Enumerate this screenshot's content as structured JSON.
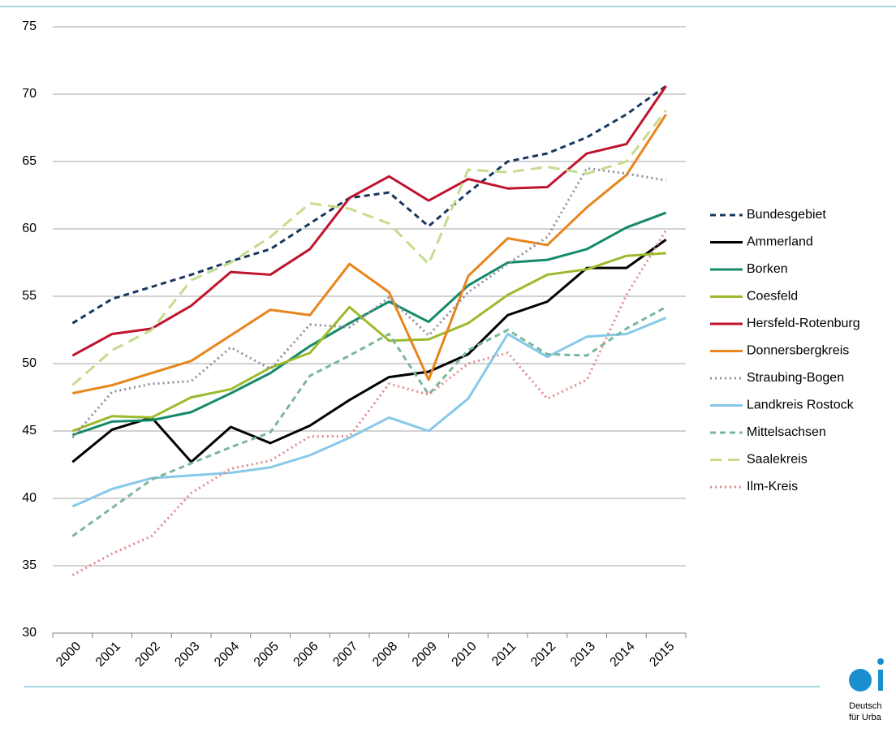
{
  "chart_data": {
    "type": "line",
    "categories": [
      "2000",
      "2001",
      "2002",
      "2003",
      "2004",
      "2005",
      "2006",
      "2007",
      "2008",
      "2009",
      "2010",
      "2011",
      "2012",
      "2013",
      "2014",
      "2015"
    ],
    "ylim": [
      30,
      75
    ],
    "yticks": [
      30,
      35,
      40,
      45,
      50,
      55,
      60,
      65,
      70,
      75
    ],
    "grid": true,
    "legend": "right",
    "series": [
      {
        "name": "Bundesgebiet",
        "color": "#17375e",
        "style": "dashed",
        "values": [
          53.0,
          54.8,
          55.7,
          56.6,
          57.6,
          58.5,
          60.4,
          62.3,
          62.7,
          60.2,
          62.7,
          65.0,
          65.6,
          66.8,
          68.5,
          70.6
        ]
      },
      {
        "name": "Ammerland",
        "color": "#000000",
        "style": "solid",
        "values": [
          42.7,
          45.1,
          46.0,
          42.7,
          45.3,
          44.1,
          45.4,
          47.3,
          49.0,
          49.4,
          50.7,
          53.6,
          54.6,
          57.1,
          57.1,
          59.2
        ]
      },
      {
        "name": "Borken",
        "color": "#138a6b",
        "style": "solid",
        "values": [
          44.7,
          45.7,
          45.8,
          46.4,
          47.8,
          49.3,
          51.3,
          53.0,
          54.6,
          53.1,
          55.8,
          57.5,
          57.7,
          58.5,
          60.1,
          61.2
        ]
      },
      {
        "name": "Coesfeld",
        "color": "#9bbb2c",
        "style": "solid",
        "values": [
          45.0,
          46.1,
          46.0,
          47.5,
          48.1,
          49.7,
          50.8,
          54.2,
          51.7,
          51.8,
          53.0,
          55.1,
          56.6,
          57.0,
          58.0,
          58.2
        ]
      },
      {
        "name": "Hersfeld-Rotenburg",
        "color": "#c0142e",
        "style": "solid",
        "values": [
          50.6,
          52.2,
          52.6,
          54.3,
          56.8,
          56.6,
          58.5,
          62.3,
          63.9,
          62.1,
          63.7,
          63.0,
          63.1,
          65.6,
          66.3,
          70.6
        ]
      },
      {
        "name": "Donnersbergkreis",
        "color": "#e8851c",
        "style": "solid",
        "values": [
          47.8,
          48.4,
          49.3,
          50.2,
          52.1,
          54.0,
          53.6,
          57.4,
          55.3,
          48.8,
          56.5,
          59.3,
          58.8,
          61.6,
          64.0,
          68.5
        ]
      },
      {
        "name": "Straubing-Bogen",
        "color": "#8d8fa0",
        "style": "dotted",
        "values": [
          44.5,
          47.9,
          48.5,
          48.7,
          51.2,
          49.6,
          52.9,
          52.7,
          54.9,
          52.1,
          55.3,
          57.4,
          59.4,
          64.5,
          64.1,
          63.6
        ]
      },
      {
        "name": "Landkreis Rostock",
        "color": "#87c9e8",
        "style": "solid",
        "values": [
          39.4,
          40.7,
          41.5,
          41.7,
          41.9,
          42.3,
          43.2,
          44.5,
          46.0,
          45.0,
          47.4,
          52.2,
          50.5,
          52.0,
          52.2,
          53.4
        ]
      },
      {
        "name": "Mittelsachsen",
        "color": "#7ab79a",
        "style": "dashed",
        "values": [
          37.2,
          39.3,
          41.4,
          42.6,
          43.8,
          44.9,
          49.1,
          50.6,
          52.2,
          47.7,
          51.0,
          52.5,
          50.7,
          50.6,
          52.6,
          54.2
        ]
      },
      {
        "name": "Saalekreis",
        "color": "#c5dc8d",
        "style": "longdash",
        "values": [
          48.4,
          51.0,
          52.5,
          56.2,
          57.5,
          59.4,
          61.9,
          61.5,
          60.4,
          57.4,
          64.4,
          64.2,
          64.6,
          64.1,
          65.0,
          68.8
        ]
      },
      {
        "name": "Ilm-Kreis",
        "color": "#e08a8e",
        "style": "dotted",
        "values": [
          34.3,
          35.9,
          37.2,
          40.4,
          42.2,
          42.8,
          44.6,
          44.6,
          48.5,
          47.7,
          50.0,
          50.8,
          47.4,
          48.8,
          55.1,
          59.9
        ]
      }
    ]
  },
  "logo": {
    "lines": [
      "Deutsch",
      "für Urba"
    ]
  }
}
